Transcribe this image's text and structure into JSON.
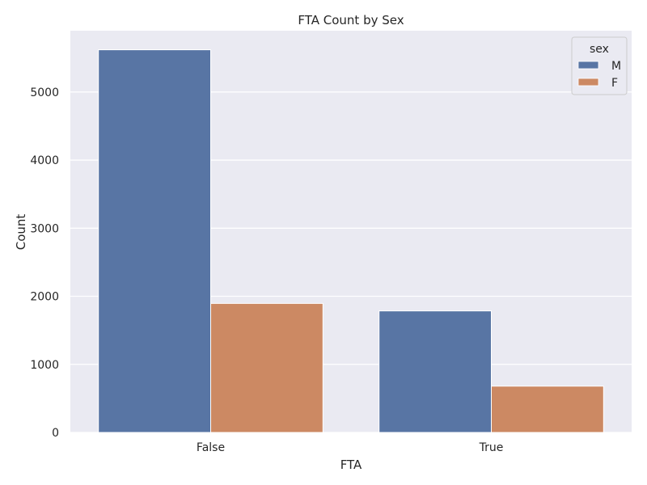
{
  "chart_data": {
    "type": "bar",
    "title": "FTA Count by Sex",
    "xlabel": "FTA",
    "ylabel": "Count",
    "categories": [
      "False",
      "True"
    ],
    "series": [
      {
        "name": "M",
        "color": "#5875a4",
        "values": [
          5620,
          1785
        ]
      },
      {
        "name": "F",
        "color": "#cc8963",
        "values": [
          1895,
          680
        ]
      }
    ],
    "ylim": [
      0,
      5900
    ],
    "yticks": [
      0,
      1000,
      2000,
      3000,
      4000,
      5000
    ],
    "grid": true,
    "background": "#eaeaf2",
    "legend": {
      "title": "sex",
      "position": "top-right"
    }
  }
}
